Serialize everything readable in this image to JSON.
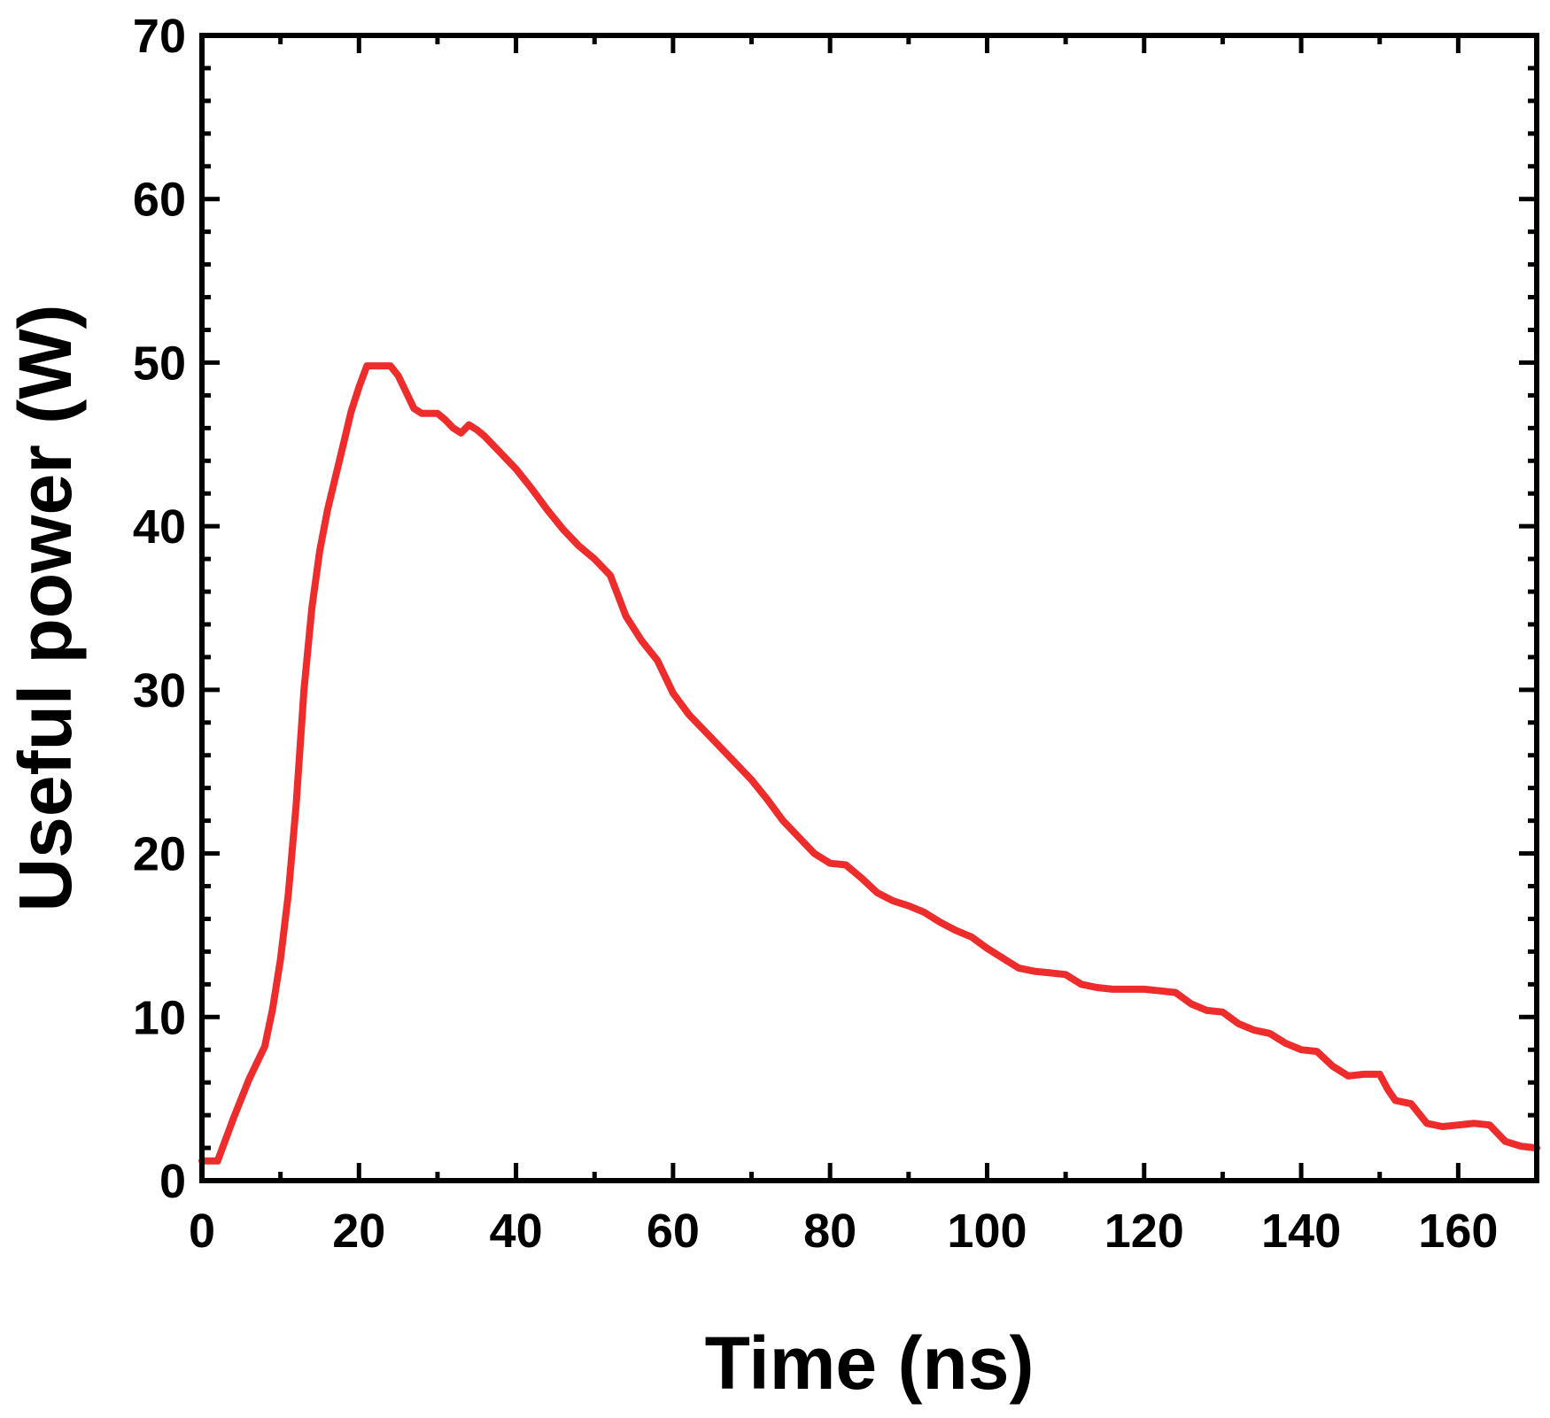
{
  "chart_data": {
    "type": "line",
    "xlabel": "Time (ns)",
    "ylabel": "Useful power (W)",
    "xlim": [
      0,
      170
    ],
    "ylim": [
      0,
      70
    ],
    "x_ticks": [
      0,
      20,
      40,
      60,
      80,
      100,
      120,
      140,
      160
    ],
    "y_ticks": [
      0,
      10,
      20,
      30,
      40,
      50,
      60,
      70
    ],
    "grid": false,
    "legend": "none",
    "colors": {
      "line": "#ee2c2c",
      "axis": "#000000",
      "background": "#ffffff"
    },
    "series": [
      {
        "x": [
          0,
          2,
          4,
          6,
          8,
          9,
          10,
          11,
          12,
          13,
          14,
          15,
          16,
          17,
          18,
          19,
          20,
          21,
          22,
          23,
          24,
          25,
          26,
          27,
          28,
          29,
          30,
          31,
          32,
          33,
          34,
          35,
          36,
          37,
          38,
          39,
          40,
          42,
          44,
          46,
          48,
          50,
          52,
          54,
          56,
          58,
          60,
          62,
          64,
          66,
          68,
          70,
          72,
          74,
          76,
          78,
          80,
          82,
          84,
          86,
          88,
          90,
          92,
          94,
          96,
          98,
          100,
          102,
          104,
          106,
          108,
          110,
          112,
          114,
          116,
          118,
          120,
          122,
          124,
          126,
          128,
          130,
          132,
          134,
          136,
          138,
          140,
          142,
          144,
          146,
          148,
          150,
          151,
          152,
          154,
          156,
          158,
          160,
          162,
          164,
          166,
          168,
          170
        ],
        "y": [
          1.2,
          1.2,
          3.8,
          6.2,
          8.2,
          10.5,
          13.5,
          17.5,
          23,
          30,
          35,
          38.5,
          41,
          43,
          45,
          47,
          48.5,
          49.8,
          49.8,
          49.8,
          49.8,
          49.2,
          48.2,
          47.2,
          46.9,
          46.9,
          46.9,
          46.5,
          46.0,
          45.7,
          46.2,
          45.9,
          45.5,
          45.0,
          44.5,
          44.0,
          43.5,
          42.3,
          41.0,
          39.8,
          38.8,
          38.0,
          37.0,
          34.5,
          33.0,
          31.8,
          29.8,
          28.5,
          27.5,
          26.5,
          25.5,
          24.5,
          23.3,
          22.0,
          21.0,
          20.0,
          19.4,
          19.3,
          18.5,
          17.6,
          17.1,
          16.8,
          16.4,
          15.8,
          15.3,
          14.9,
          14.2,
          13.6,
          13.0,
          12.8,
          12.7,
          12.6,
          12.0,
          11.8,
          11.7,
          11.7,
          11.7,
          11.6,
          11.5,
          10.8,
          10.4,
          10.3,
          9.6,
          9.2,
          9.0,
          8.4,
          8.0,
          7.9,
          7.0,
          6.4,
          6.5,
          6.5,
          5.6,
          4.9,
          4.7,
          3.5,
          3.3,
          3.4,
          3.5,
          3.4,
          2.4,
          2.1,
          2.0
        ]
      }
    ]
  }
}
